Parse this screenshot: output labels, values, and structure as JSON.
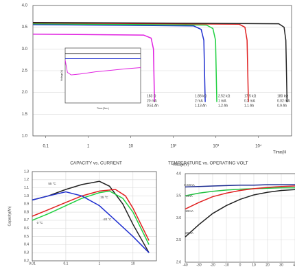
{
  "chart_data": [
    {
      "type": "line",
      "xscale": "log",
      "xlabel": "Time(H",
      "xlim": [
        0.05,
        60000
      ],
      "ylim": [
        1.0,
        4.0
      ],
      "xticks": [
        0.1,
        1,
        10,
        {
          "value": 100,
          "label": "10²"
        },
        {
          "value": 1000,
          "label": "10³"
        },
        {
          "value": 10000,
          "label": "10⁴"
        }
      ],
      "yticks": [
        {
          "value": 1,
          "label": "1.0"
        },
        1.5,
        {
          "value": 2,
          "label": "2.0"
        },
        2.5,
        {
          "value": 3,
          "label": "3.0"
        },
        3.5,
        {
          "value": 4,
          "label": "4.0"
        }
      ],
      "grid": true,
      "series": [
        {
          "color": "#e020e0",
          "x": [
            0.05,
            20,
            30,
            34,
            36
          ],
          "values": [
            3.34,
            3.32,
            3.25,
            3.0,
            1.78
          ]
        },
        {
          "color": "#2030d0",
          "x": [
            0.05,
            300,
            450,
            520,
            560
          ],
          "values": [
            3.56,
            3.53,
            3.45,
            3.2,
            1.78
          ]
        },
        {
          "color": "#20d040",
          "x": [
            0.05,
            600,
            850,
            980,
            1050
          ],
          "values": [
            3.58,
            3.55,
            3.47,
            3.2,
            1.78
          ]
        },
        {
          "color": "#e02020",
          "x": [
            0.05,
            3500,
            4800,
            5400,
            5800
          ],
          "values": [
            3.6,
            3.57,
            3.5,
            3.2,
            1.78
          ]
        },
        {
          "color": "#202020",
          "x": [
            0.05,
            30000,
            40000,
            44000,
            47000
          ],
          "values": [
            3.61,
            3.58,
            3.5,
            3.2,
            1.78
          ]
        }
      ],
      "annotations": [
        [
          "183 Ω",
          "20 mA",
          "0.51 Ah"
        ],
        [
          "1.88 kΩ",
          "2 mA",
          "1.13 Ah"
        ],
        [
          "2.52 kΩ",
          "1 mA",
          "1.2 Ah"
        ],
        [
          "17.5 kΩ",
          "0.2 mA",
          "1.1 Ah"
        ],
        [
          "180 kΩ",
          "0.02 mA",
          "0.9 Ah"
        ]
      ]
    },
    {
      "type": "line",
      "xlabel": "Time (Sec.)",
      "ylabel": "Voltage(V)",
      "xlim": [
        0,
        10
      ],
      "ylim": [
        2.0,
        3.8
      ],
      "series": [
        {
          "color": "#202020",
          "x": [
            0,
            10
          ],
          "values": [
            3.62,
            3.62
          ]
        },
        {
          "color": "#2030d0",
          "x": [
            0,
            10
          ],
          "values": [
            3.45,
            3.45
          ]
        },
        {
          "color": "#e020e0",
          "x": [
            0,
            0.3,
            0.8,
            2,
            4,
            6,
            8,
            10
          ],
          "values": [
            3.4,
            3.0,
            2.92,
            2.95,
            3.02,
            3.07,
            3.12,
            3.16
          ]
        }
      ]
    },
    {
      "type": "line",
      "xscale": "log",
      "title": "CAPACITY vs. CURRENT",
      "ylabel": "Capacity(Ah)",
      "xlim": [
        0.01,
        50
      ],
      "ylim": [
        0.2,
        1.3
      ],
      "xticks": [
        0.01,
        0.1,
        1,
        10
      ],
      "yticks": [
        0.2,
        0.3,
        0.4,
        0.5,
        0.6,
        0.7,
        0.8,
        0.9,
        {
          "value": 1,
          "label": "1.0"
        },
        1.1,
        1.2,
        1.3
      ],
      "grid": true,
      "series": [
        {
          "name": "55 °C",
          "color": "#202020",
          "x": [
            0.01,
            0.03,
            0.1,
            0.3,
            1,
            2,
            5,
            10,
            30
          ],
          "values": [
            0.95,
            1.0,
            1.08,
            1.14,
            1.18,
            1.12,
            0.9,
            0.65,
            0.3
          ]
        },
        {
          "name": "25 °C",
          "color": "#e02020",
          "x": [
            0.01,
            0.03,
            0.1,
            0.3,
            1,
            3,
            6,
            10,
            30
          ],
          "values": [
            0.75,
            0.83,
            0.92,
            1.0,
            1.06,
            1.08,
            1.0,
            0.85,
            0.45
          ]
        },
        {
          "name": "0 °C",
          "color": "#20d040",
          "x": [
            0.01,
            0.03,
            0.1,
            0.3,
            1,
            2,
            5,
            10,
            30
          ],
          "values": [
            0.7,
            0.78,
            0.88,
            0.97,
            1.04,
            1.06,
            0.97,
            0.8,
            0.4
          ]
        },
        {
          "name": "-20 °C",
          "color": "#2030d0",
          "x": [
            0.01,
            0.03,
            0.1,
            0.3,
            1,
            3,
            10,
            30
          ],
          "values": [
            0.95,
            1.0,
            1.05,
            1.0,
            0.88,
            0.7,
            0.5,
            0.3
          ]
        }
      ]
    },
    {
      "type": "line",
      "title": "TEMPERATURE vs. OPERATING VOLT",
      "ylabel": "Voltage(V)",
      "xlim": [
        -40,
        60
      ],
      "ylim": [
        2.0,
        4.0
      ],
      "xticks": [
        -40,
        -30,
        -20,
        -10,
        0,
        10,
        20,
        30,
        40,
        50,
        60
      ],
      "yticks": [
        {
          "value": 2,
          "label": "2.0"
        },
        2.5,
        {
          "value": 3,
          "label": "3.0"
        },
        3.5,
        {
          "value": 4,
          "label": "4.0"
        }
      ],
      "grid": true,
      "series": [
        {
          "name": "0.02mA",
          "color": "#1a2a90",
          "x": [
            -40,
            -30,
            -20,
            -10,
            0,
            10,
            20,
            30,
            40,
            50,
            60
          ],
          "values": [
            3.7,
            3.71,
            3.72,
            3.73,
            3.74,
            3.74,
            3.75,
            3.75,
            3.75,
            3.76,
            3.76
          ]
        },
        {
          "name": "2mA",
          "color": "#20c040",
          "x": [
            -40,
            -30,
            -20,
            -10,
            0,
            10,
            20,
            30,
            40,
            50,
            60
          ],
          "values": [
            3.5,
            3.56,
            3.6,
            3.63,
            3.65,
            3.66,
            3.67,
            3.68,
            3.68,
            3.69,
            3.69
          ]
        },
        {
          "name": "10mA",
          "color": "#e02020",
          "x": [
            -40,
            -30,
            -20,
            -10,
            0,
            10,
            20,
            30,
            40,
            50,
            60
          ],
          "values": [
            3.2,
            3.35,
            3.48,
            3.56,
            3.62,
            3.66,
            3.69,
            3.71,
            3.72,
            3.73,
            3.73
          ]
        },
        {
          "name": "20mA",
          "color": "#202020",
          "x": [
            -40,
            -30,
            -20,
            -10,
            0,
            10,
            20,
            30,
            40,
            50,
            60
          ],
          "values": [
            2.57,
            2.85,
            3.1,
            3.28,
            3.42,
            3.52,
            3.58,
            3.62,
            3.64,
            3.66,
            3.66
          ]
        }
      ]
    }
  ]
}
